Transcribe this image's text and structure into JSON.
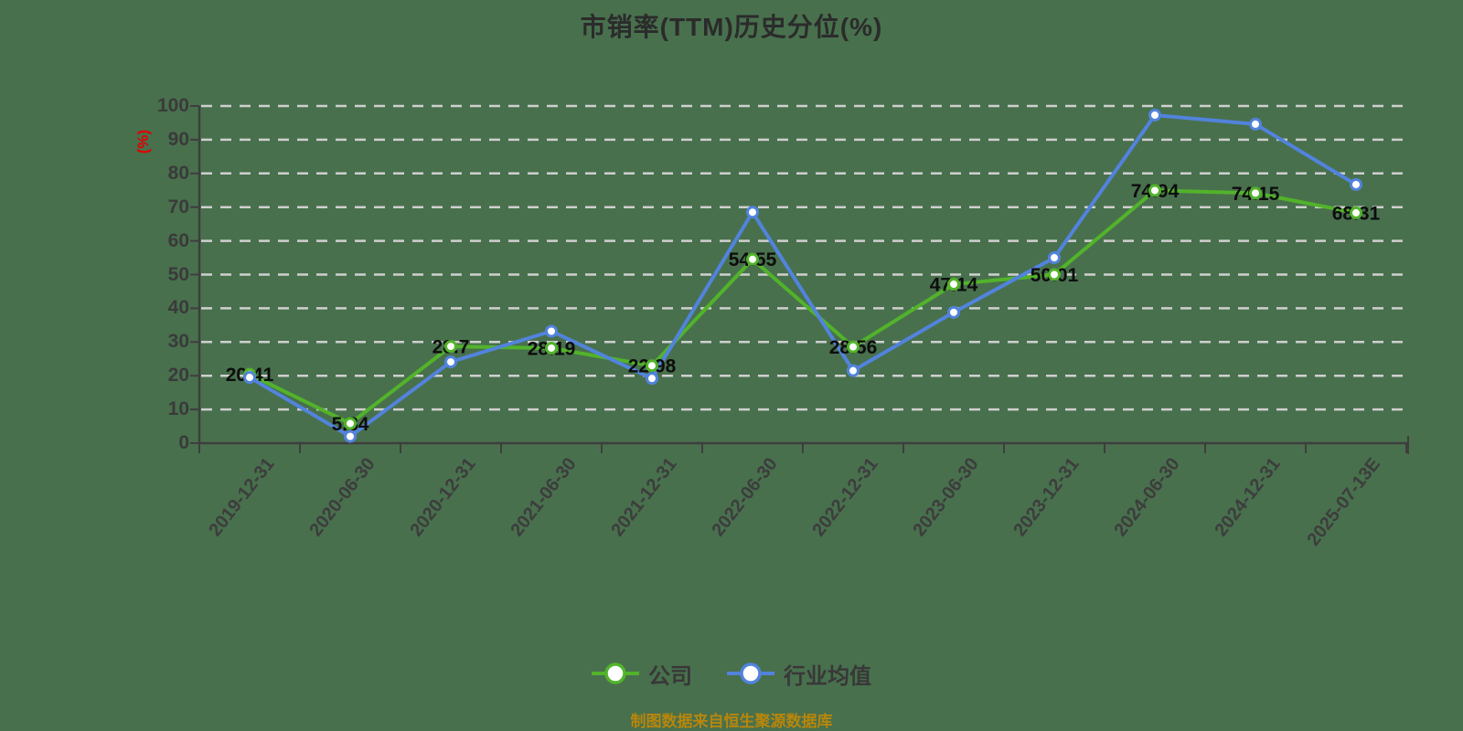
{
  "title": "市销率(TTM)历史分位(%)",
  "footer": "制图数据来自恒生聚源数据库",
  "y_axis": {
    "unit": "(%)",
    "ticks": [
      0,
      10,
      20,
      30,
      40,
      50,
      60,
      70,
      80,
      90,
      100
    ]
  },
  "legend": [
    {
      "name": "公司",
      "color": "#52b32b"
    },
    {
      "name": "行业均值",
      "color": "#5283dc"
    }
  ],
  "chart_data": {
    "type": "line",
    "title": "市销率(TTM)历史分位(%)",
    "ylabel": "(%)",
    "ylim": [
      0,
      100
    ],
    "grid": "dashed-horizontal",
    "legend_position": "bottom",
    "background": "#48704d",
    "grid_color": "#cfcfcf",
    "axis_color": "#3e3e3e",
    "value_label_color": "#0d0d0d",
    "categories": [
      "2019-12-31",
      "2020-06-30",
      "2020-12-31",
      "2021-06-30",
      "2021-12-31",
      "2022-06-30",
      "2022-12-31",
      "2023-06-30",
      "2023-12-31",
      "2024-06-30",
      "2024-12-31",
      "2025-07-13E"
    ],
    "series": [
      {
        "name": "公司",
        "color": "#52b32b",
        "values": [
          20.41,
          5.84,
          28.7,
          28.19,
          22.98,
          54.55,
          28.56,
          47.14,
          50.01,
          74.94,
          74.15,
          68.31
        ],
        "point_labels": [
          "20.41",
          "5.84",
          "28.7",
          "28.19",
          "22.98",
          "54.55",
          "28.56",
          "47.14",
          "50.01",
          "74.94",
          "74.15",
          "68.31"
        ]
      },
      {
        "name": "行业均值",
        "color": "#5283dc",
        "values": [
          19.5,
          2.0,
          24.1,
          33.2,
          19.2,
          68.5,
          21.5,
          38.8,
          55.0,
          97.3,
          94.6,
          76.7
        ],
        "point_labels": []
      }
    ]
  }
}
